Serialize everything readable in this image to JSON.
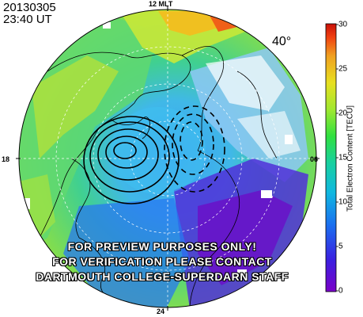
{
  "header": {
    "date": "20130305",
    "time": "23:40 UT"
  },
  "map": {
    "mlt_labels": {
      "top": "12 MLT",
      "bottom": "24",
      "left": "18",
      "right": "06"
    },
    "latitude_label": "40°",
    "convection_contours": "black solid (negative) and dashed (positive) potential contours over the polar cap",
    "colors": {
      "coast": "#000000",
      "grid": "#ffffff"
    }
  },
  "colorbar": {
    "label": "Total Electron Content [TECU]",
    "ticks": [
      "30",
      "25",
      "20",
      "15",
      "10",
      "5",
      "0"
    ],
    "min": 0,
    "max": 30,
    "colormap": [
      "#7a00c8",
      "#3a20e0",
      "#1a70f0",
      "#10b8e0",
      "#18d0a0",
      "#30e040",
      "#a0e830",
      "#e8e020",
      "#f0a020",
      "#f04010",
      "#c81008"
    ]
  },
  "disclaimer": [
    "FOR PREVIEW PURPOSES ONLY!",
    "FOR VERIFICATION PLEASE CONTACT",
    "DARTMOUTH COLLEGE-SUPERDARN STAFF"
  ]
}
